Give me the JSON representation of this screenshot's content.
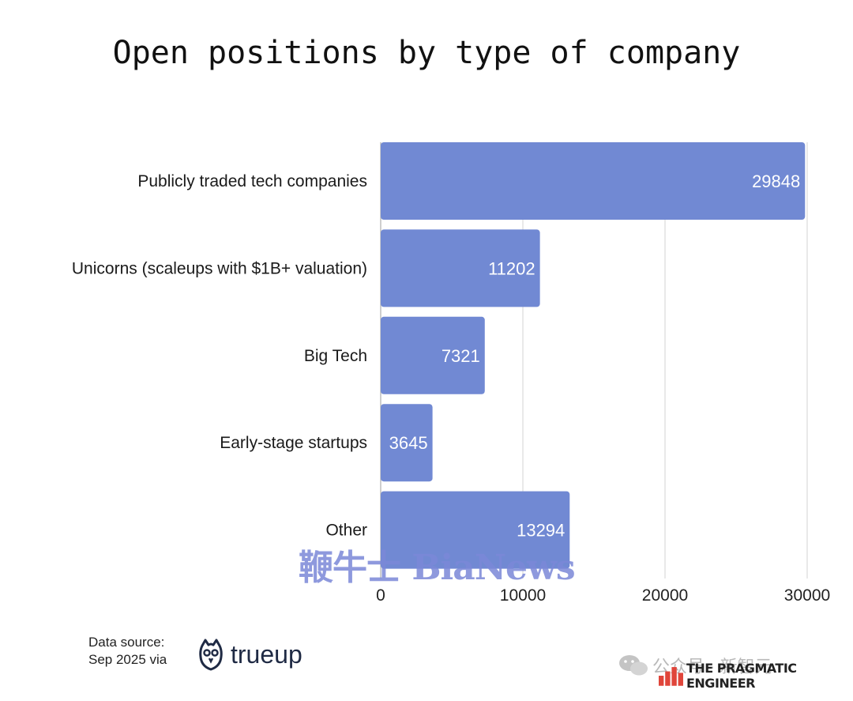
{
  "title": "Open positions by type of company",
  "chart_data": {
    "type": "bar",
    "orientation": "horizontal",
    "categories": [
      "Publicly traded tech companies",
      "Unicorns (scaleups with $1B+ valuation)",
      "Big Tech",
      "Early-stage startups",
      "Other"
    ],
    "values": [
      29848,
      11202,
      7321,
      3645,
      13294
    ],
    "data_labels": [
      "29848",
      "11202",
      "7321",
      "3645",
      "13294"
    ],
    "xlim": [
      0,
      30000
    ],
    "xticks": [
      0,
      10000,
      20000,
      30000
    ],
    "xtick_labels": [
      "0",
      "10000",
      "20000",
      "30000"
    ],
    "grid": "vertical",
    "bar_color": "#7189d3"
  },
  "source": {
    "line1": "Data source:",
    "line2": "Sep 2025 via",
    "logo_text": "trueup"
  },
  "watermarks": {
    "overlay": "鞭牛士 BiaNews",
    "wechat": "公众号 · 新智元",
    "brand": "THE PRAGMATIC ENGINEER"
  },
  "icons": {
    "source_logo": "owl-icon",
    "wechat": "wechat-icon",
    "brand": "bar-chart-icon"
  }
}
